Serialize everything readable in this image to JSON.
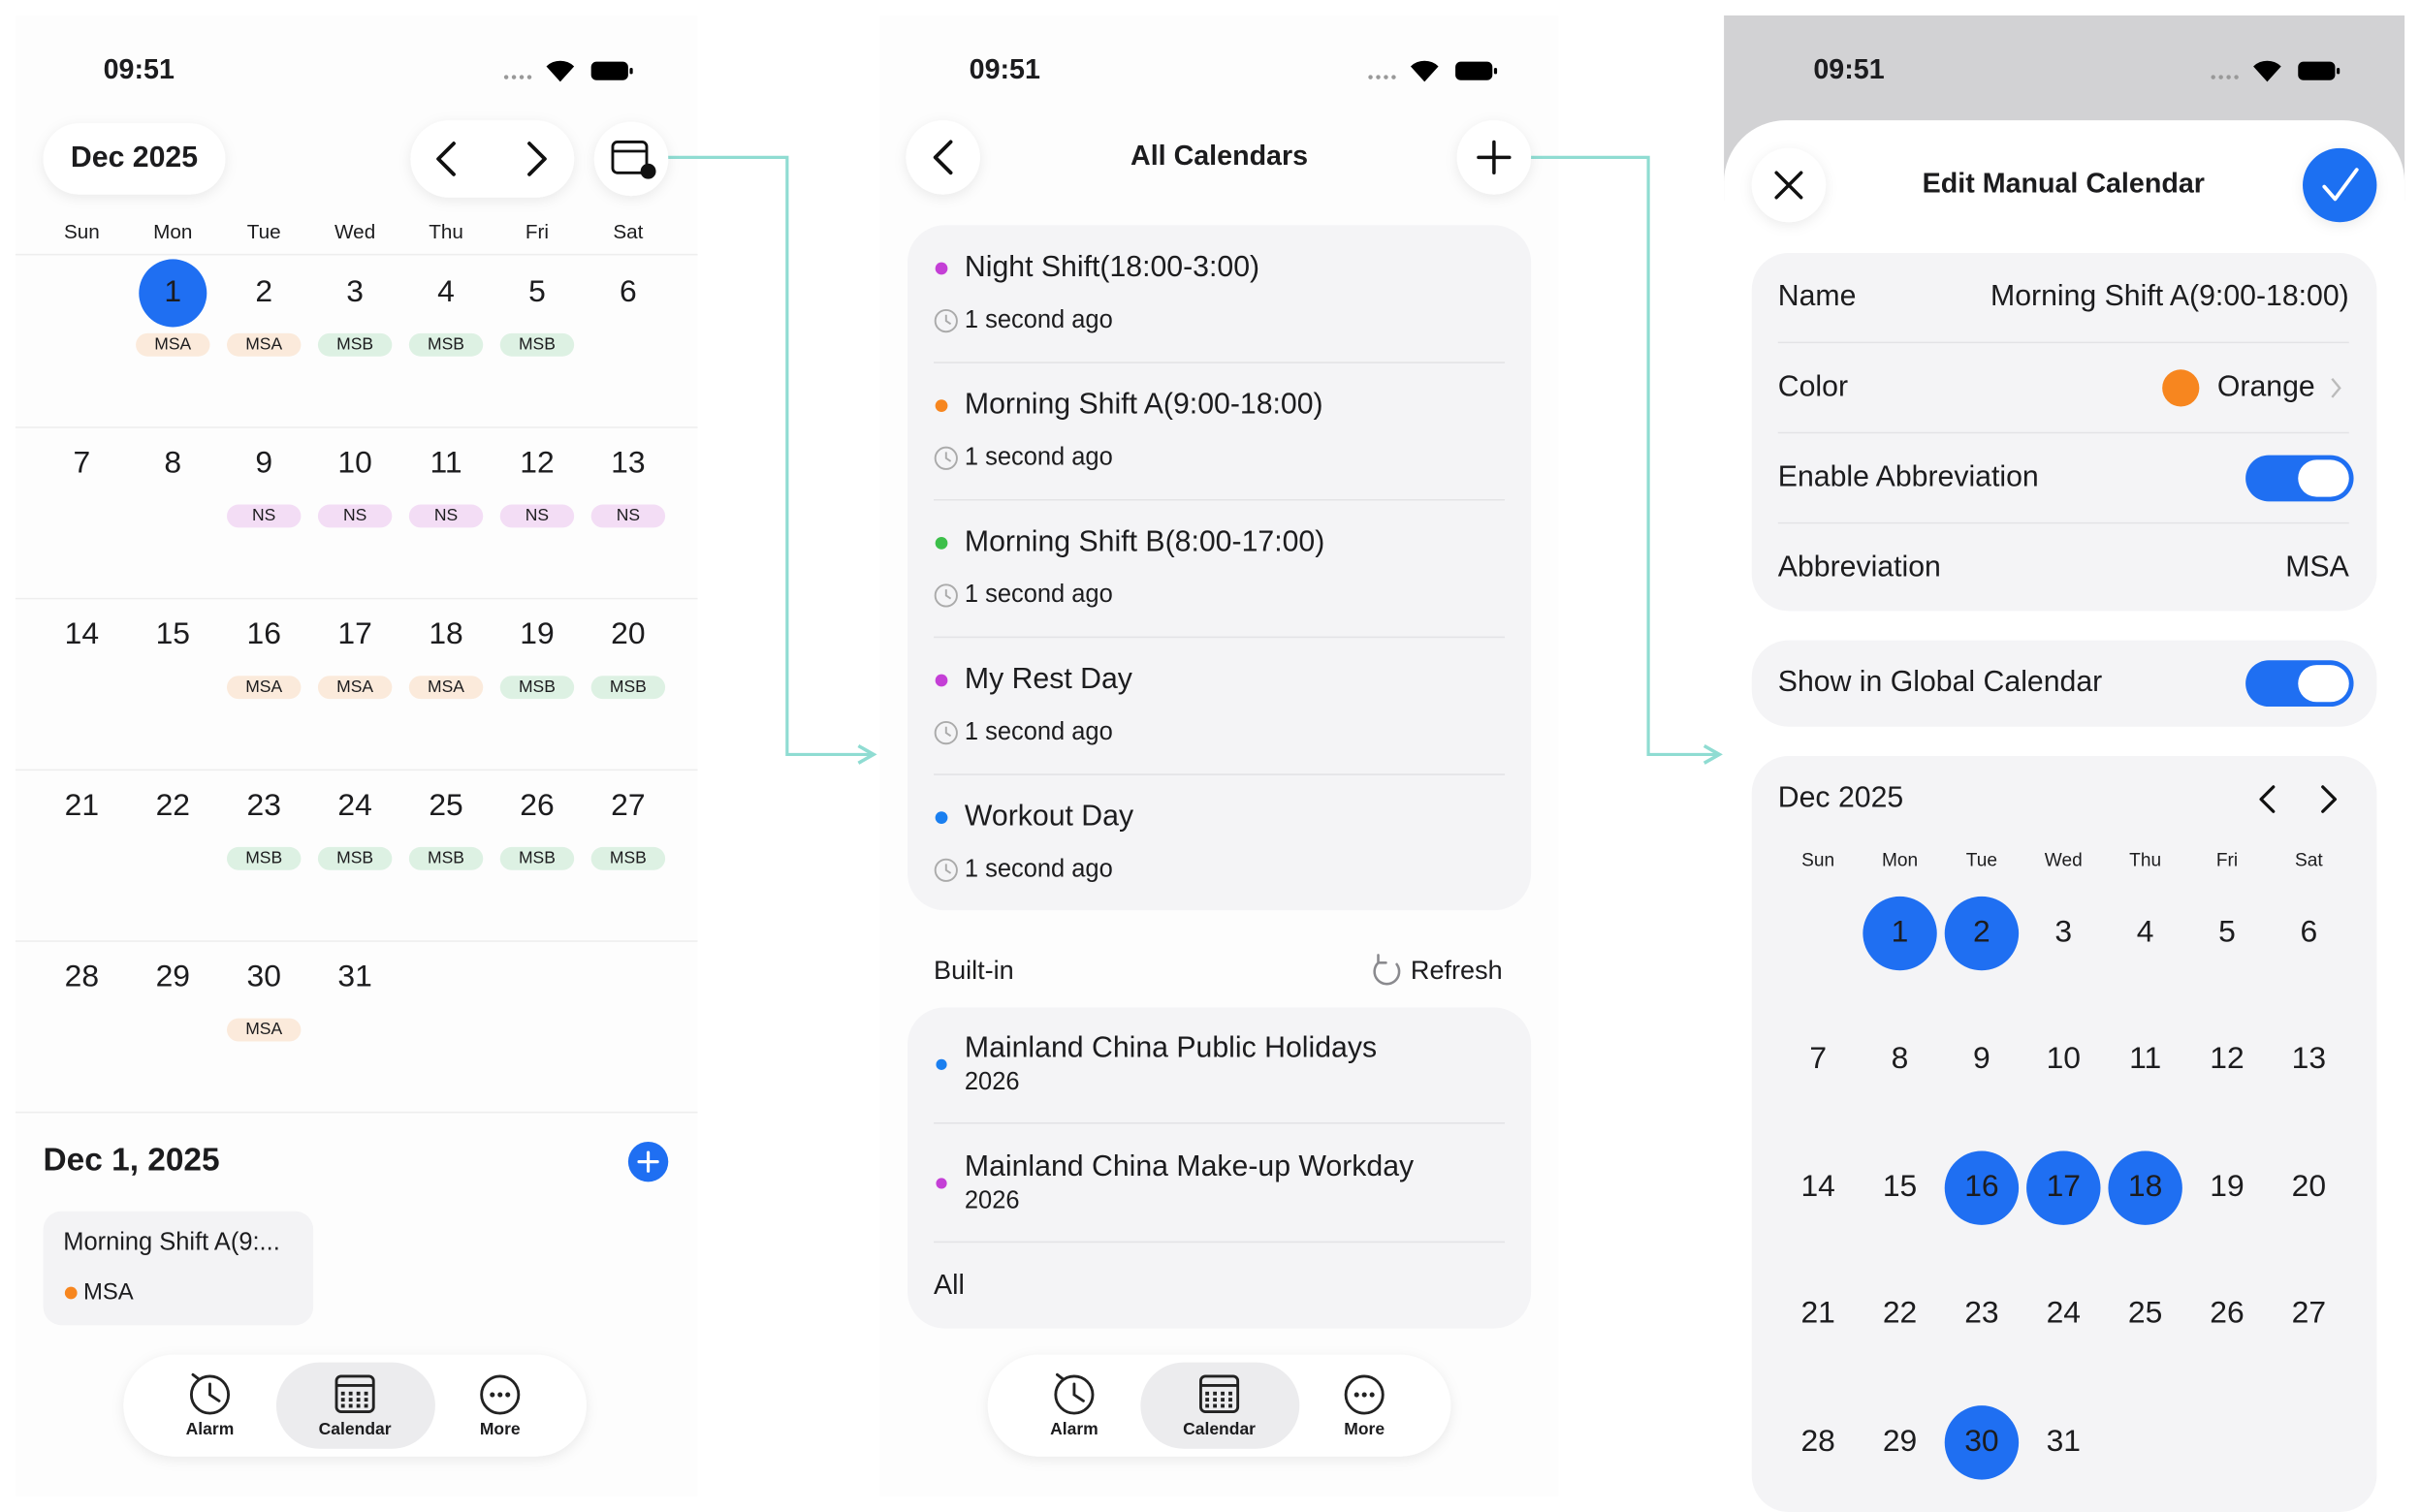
{
  "screens": [
    {
      "time": "09:51",
      "month": "Dec 2025",
      "weekdays": [
        "Sun",
        "Mon",
        "Tue",
        "Wed",
        "Thu",
        "Fri",
        "Sat"
      ],
      "weeks": [
        [
          null,
          {
            "day": 1,
            "selected": true,
            "tag": {
              "text": "MSA",
              "color": "#f08a2c"
            }
          },
          {
            "day": 2,
            "tag": {
              "text": "MSA",
              "color": "#f08a2c"
            }
          },
          {
            "day": 3,
            "tag": {
              "text": "MSB",
              "color": "#36b35f"
            }
          },
          {
            "day": 4,
            "tag": {
              "text": "MSB",
              "color": "#36b35f"
            }
          },
          {
            "day": 5,
            "tag": {
              "text": "MSB",
              "color": "#36b35f"
            }
          },
          {
            "day": 6
          }
        ],
        [
          {
            "day": 7
          },
          {
            "day": 8
          },
          {
            "day": 9,
            "tag": {
              "text": "NS",
              "color": "#c23bd0"
            }
          },
          {
            "day": 10,
            "tag": {
              "text": "NS",
              "color": "#c23bd0"
            }
          },
          {
            "day": 11,
            "tag": {
              "text": "NS",
              "color": "#c23bd0"
            }
          },
          {
            "day": 12,
            "tag": {
              "text": "NS",
              "color": "#c23bd0"
            }
          },
          {
            "day": 13,
            "tag": {
              "text": "NS",
              "color": "#c23bd0"
            }
          }
        ],
        [
          {
            "day": 14
          },
          {
            "day": 15
          },
          {
            "day": 16,
            "tag": {
              "text": "MSA",
              "color": "#f08a2c"
            }
          },
          {
            "day": 17,
            "tag": {
              "text": "MSA",
              "color": "#f08a2c"
            }
          },
          {
            "day": 18,
            "tag": {
              "text": "MSA",
              "color": "#f08a2c"
            }
          },
          {
            "day": 19,
            "tag": {
              "text": "MSB",
              "color": "#36b35f"
            }
          },
          {
            "day": 20,
            "tag": {
              "text": "MSB",
              "color": "#36b35f"
            }
          }
        ],
        [
          {
            "day": 21
          },
          {
            "day": 22
          },
          {
            "day": 23,
            "tag": {
              "text": "MSB",
              "color": "#36b35f"
            }
          },
          {
            "day": 24,
            "tag": {
              "text": "MSB",
              "color": "#36b35f"
            }
          },
          {
            "day": 25,
            "tag": {
              "text": "MSB",
              "color": "#36b35f"
            }
          },
          {
            "day": 26,
            "tag": {
              "text": "MSB",
              "color": "#36b35f"
            }
          },
          {
            "day": 27,
            "tag": {
              "text": "MSB",
              "color": "#36b35f"
            }
          }
        ],
        [
          {
            "day": 28
          },
          {
            "day": 29
          },
          {
            "day": 30,
            "tag": {
              "text": "MSA",
              "color": "#f08a2c"
            }
          },
          {
            "day": 31
          },
          null,
          null,
          null
        ]
      ],
      "selected_date": "Dec 1, 2025",
      "events": [
        {
          "title": "Morning Shift A(9:...",
          "abbr": "MSA",
          "color": "#f7861f"
        }
      ],
      "tabs": [
        {
          "label": "Alarm"
        },
        {
          "label": "Calendar",
          "selected": true
        },
        {
          "label": "More"
        }
      ]
    },
    {
      "time": "09:51",
      "title": "All Calendars",
      "calendars": [
        {
          "name": "Night Shift(18:00-3:00)",
          "color": "#c43fd6",
          "updated": "1 second ago"
        },
        {
          "name": "Morning Shift A(9:00-18:00)",
          "color": "#f7861f",
          "updated": "1 second ago"
        },
        {
          "name": "Morning Shift B(8:00-17:00)",
          "color": "#3cbf4a",
          "updated": "1 second ago"
        },
        {
          "name": "My Rest Day",
          "color": "#c43fd6",
          "updated": "1 second ago"
        },
        {
          "name": "Workout Day",
          "color": "#1a7ff0",
          "updated": "1 second ago"
        }
      ],
      "builtin_section": "Built-in",
      "refresh": "Refresh",
      "builtin": [
        {
          "name": "Mainland China Public Holidays",
          "year": "2026",
          "color": "#1a7ff0"
        },
        {
          "name": "Mainland China Make-up Workday",
          "year": "2026",
          "color": "#c43fd6"
        }
      ],
      "all": "All",
      "tabs": [
        {
          "label": "Alarm"
        },
        {
          "label": "Calendar",
          "selected": true
        },
        {
          "label": "More"
        }
      ]
    },
    {
      "time": "09:51",
      "title": "Edit Manual Calendar",
      "fields": [
        {
          "label": "Name",
          "value": "Morning Shift A(9:00-18:00)"
        },
        {
          "label": "Color",
          "value": "Orange",
          "swatch": "#f7861f"
        },
        {
          "label": "Enable Abbreviation",
          "toggle": true
        },
        {
          "label": "Abbreviation",
          "value": "MSA"
        }
      ],
      "global": {
        "label": "Show in Global Calendar",
        "toggle": true
      },
      "month": "Dec 2025",
      "weekdays": [
        "Sun",
        "Mon",
        "Tue",
        "Wed",
        "Thu",
        "Fri",
        "Sat"
      ],
      "weeks": [
        [
          null,
          {
            "day": 1,
            "selected": true
          },
          {
            "day": 2,
            "selected": true
          },
          {
            "day": 3
          },
          {
            "day": 4
          },
          {
            "day": 5
          },
          {
            "day": 6
          }
        ],
        [
          {
            "day": 7
          },
          {
            "day": 8
          },
          {
            "day": 9
          },
          {
            "day": 10
          },
          {
            "day": 11
          },
          {
            "day": 12
          },
          {
            "day": 13
          }
        ],
        [
          {
            "day": 14
          },
          {
            "day": 15
          },
          {
            "day": 16,
            "selected": true
          },
          {
            "day": 17,
            "selected": true
          },
          {
            "day": 18,
            "selected": true
          },
          {
            "day": 19
          },
          {
            "day": 20
          }
        ],
        [
          {
            "day": 21
          },
          {
            "day": 22
          },
          {
            "day": 23
          },
          {
            "day": 24
          },
          {
            "day": 25
          },
          {
            "day": 26
          },
          {
            "day": 27
          }
        ],
        [
          {
            "day": 28
          },
          {
            "day": 29
          },
          {
            "day": 30,
            "selected": true
          },
          {
            "day": 31
          },
          null,
          null,
          null
        ]
      ]
    }
  ]
}
